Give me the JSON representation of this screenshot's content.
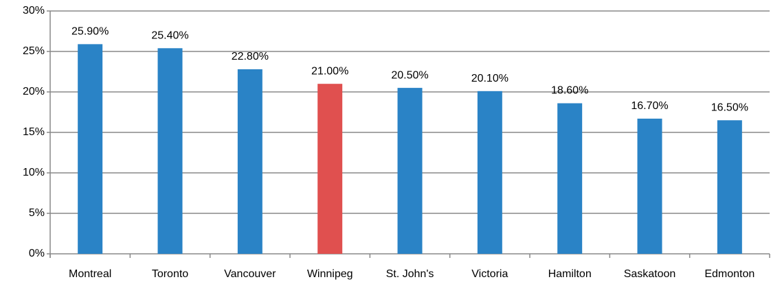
{
  "chart_data": {
    "type": "bar",
    "categories": [
      "Montreal",
      "Toronto",
      "Vancouver",
      "Winnipeg",
      "St. John's",
      "Victoria",
      "Hamilton",
      "Saskatoon",
      "Edmonton"
    ],
    "values": [
      25.9,
      25.4,
      22.8,
      21.0,
      20.5,
      20.1,
      18.6,
      16.7,
      16.5
    ],
    "value_labels": [
      "25.90%",
      "25.40%",
      "22.80%",
      "21.00%",
      "20.50%",
      "20.10%",
      "18.60%",
      "16.70%",
      "16.50%"
    ],
    "colors": [
      "#2a83c6",
      "#2a83c6",
      "#2a83c6",
      "#e0504f",
      "#2a83c6",
      "#2a83c6",
      "#2a83c6",
      "#2a83c6",
      "#2a83c6"
    ],
    "ylim": [
      0,
      30
    ],
    "yticks": [
      {
        "value": 0,
        "label": "0%"
      },
      {
        "value": 5,
        "label": "5%"
      },
      {
        "value": 10,
        "label": "10%"
      },
      {
        "value": 15,
        "label": "15%"
      },
      {
        "value": 20,
        "label": "20%"
      },
      {
        "value": 25,
        "label": "25%"
      },
      {
        "value": 30,
        "label": "30%"
      }
    ],
    "grid": true
  }
}
